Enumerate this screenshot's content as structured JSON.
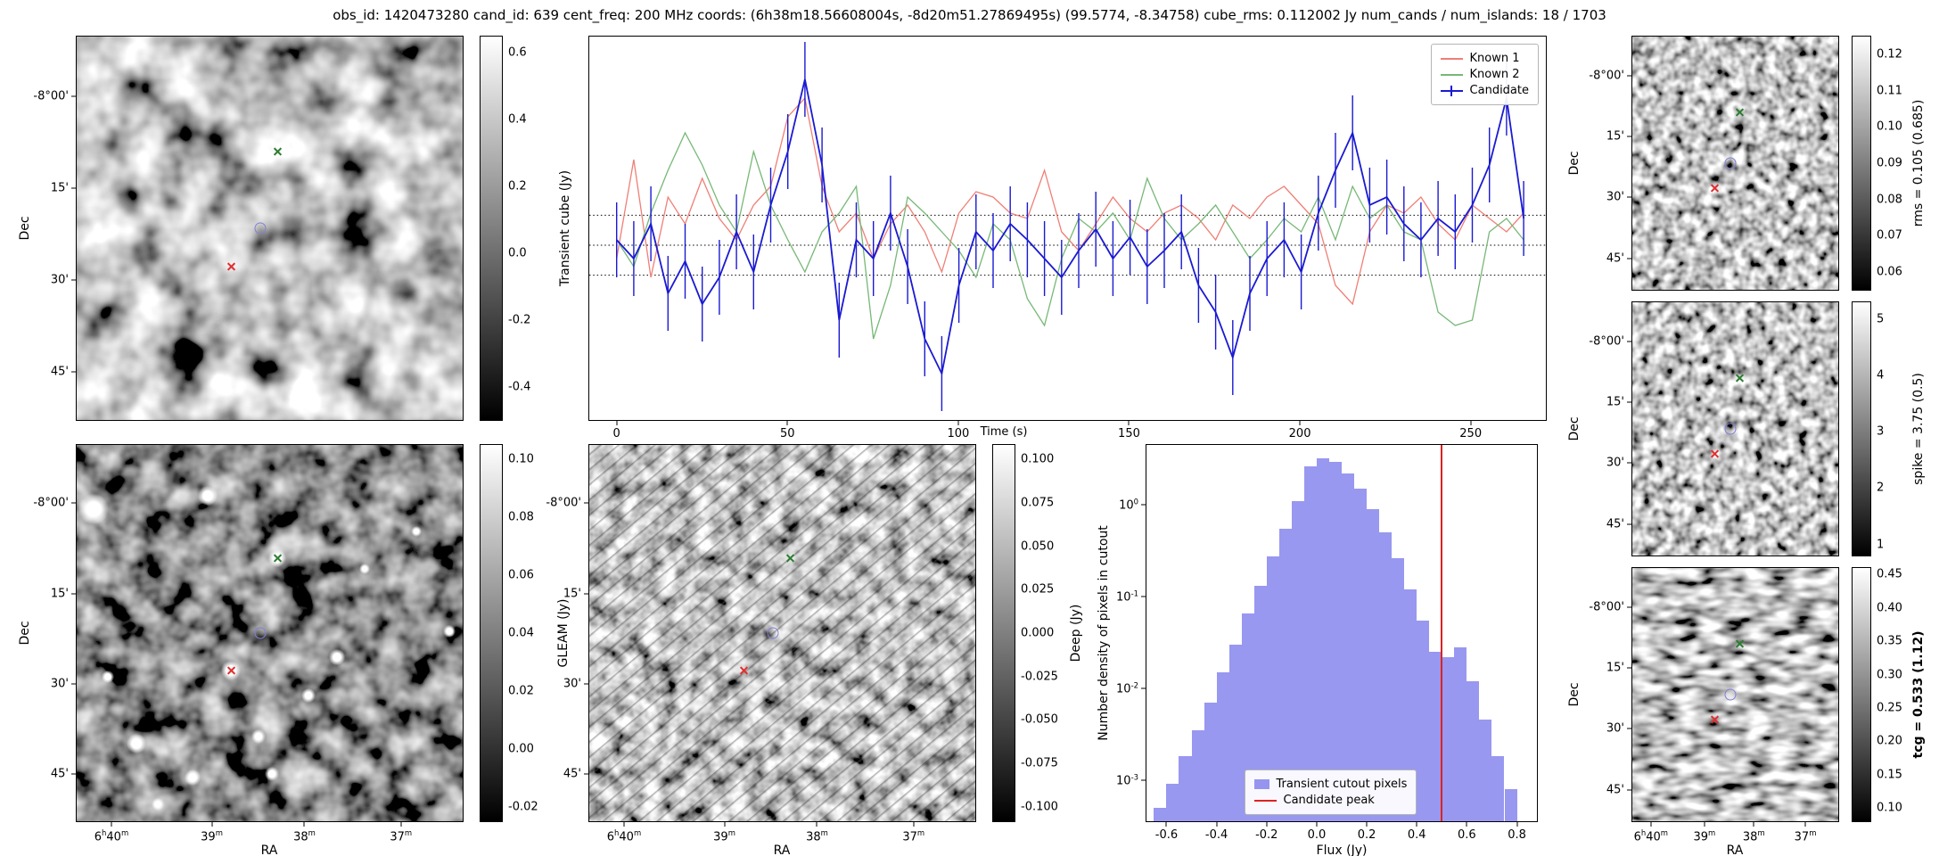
{
  "title": "obs_id: 1420473280 cand_id: 639 cent_freq: 200 MHz coords: (6h38m18.56608004s, -8d20m51.27869495s) (99.5774, -8.34758) cube_rms: 0.112002 Jy num_cands / num_islands: 18 / 1703",
  "axes": {
    "dec_label": "Dec",
    "ra_label": "RA",
    "dec_ticks": [
      {
        "t": "-8°00'",
        "f": 0.155
      },
      {
        "t": "15'",
        "f": 0.395
      },
      {
        "t": "30'",
        "f": 0.635
      },
      {
        "t": "45'",
        "f": 0.875
      }
    ],
    "ra_ticks": [
      {
        "t": "6h40m",
        "f": 0.09
      },
      {
        "t": "39m",
        "f": 0.35
      },
      {
        "t": "38m",
        "f": 0.59
      },
      {
        "t": "37m",
        "f": 0.84
      }
    ]
  },
  "panels": {
    "transient": {
      "colorbar_label": "Transient cube (Jy)",
      "cticks": [
        {
          "t": "0.6",
          "f": 0.043
        },
        {
          "t": "0.4",
          "f": 0.217
        },
        {
          "t": "0.2",
          "f": 0.391
        },
        {
          "t": "0.0",
          "f": 0.565
        },
        {
          "t": "-0.2",
          "f": 0.739
        },
        {
          "t": "-0.4",
          "f": 0.913
        }
      ]
    },
    "gleam": {
      "colorbar_label": "GLEAM (Jy)",
      "cticks": [
        {
          "t": "0.10",
          "f": 0.038
        },
        {
          "t": "0.08",
          "f": 0.192
        },
        {
          "t": "0.06",
          "f": 0.346
        },
        {
          "t": "0.04",
          "f": 0.5
        },
        {
          "t": "0.02",
          "f": 0.654
        },
        {
          "t": "0.00",
          "f": 0.808
        },
        {
          "t": "-0.02",
          "f": 0.962
        }
      ],
      "sources": [
        [
          0.045,
          0.17,
          34
        ],
        [
          0.34,
          0.135,
          22
        ],
        [
          0.52,
          0.3,
          20
        ],
        [
          0.4,
          0.6,
          22
        ],
        [
          0.675,
          0.565,
          18
        ],
        [
          0.6,
          0.665,
          16
        ],
        [
          0.155,
          0.795,
          22
        ],
        [
          0.3,
          0.885,
          18
        ],
        [
          0.47,
          0.775,
          16
        ],
        [
          0.505,
          0.875,
          16
        ],
        [
          0.08,
          0.615,
          14
        ],
        [
          0.88,
          0.23,
          12
        ],
        [
          0.965,
          0.495,
          14
        ],
        [
          0.21,
          0.955,
          14
        ],
        [
          0.745,
          0.33,
          12
        ]
      ]
    },
    "deep": {
      "time_label": "Time (s)",
      "colorbar_label": "Deep (Jy)",
      "cticks": [
        {
          "t": "0.100",
          "f": 0.037
        },
        {
          "t": "0.075",
          "f": 0.153
        },
        {
          "t": "0.050",
          "f": 0.269
        },
        {
          "t": "0.025",
          "f": 0.384
        },
        {
          "t": "0.000",
          "f": 0.5
        },
        {
          "t": "-0.025",
          "f": 0.616
        },
        {
          "t": "-0.050",
          "f": 0.731
        },
        {
          "t": "-0.075",
          "f": 0.847
        },
        {
          "t": "-0.100",
          "f": 0.963
        }
      ]
    },
    "rms": {
      "colorbar_label": "rms = 0.105 (0.685)",
      "cticks": [
        {
          "t": "0.12",
          "f": 0.071
        },
        {
          "t": "0.11",
          "f": 0.214
        },
        {
          "t": "0.10",
          "f": 0.357
        },
        {
          "t": "0.09",
          "f": 0.5
        },
        {
          "t": "0.08",
          "f": 0.643
        },
        {
          "t": "0.07",
          "f": 0.786
        },
        {
          "t": "0.06",
          "f": 0.929
        }
      ]
    },
    "spike": {
      "colorbar_label": "spike = 3.75 (0.5)",
      "cticks": [
        {
          "t": "5",
          "f": 0.067
        },
        {
          "t": "4",
          "f": 0.289
        },
        {
          "t": "3",
          "f": 0.511
        },
        {
          "t": "2",
          "f": 0.733
        },
        {
          "t": "1",
          "f": 0.956
        }
      ]
    },
    "tcg": {
      "colorbar_label": "tcg = 0.533 (1.12)",
      "cticks": [
        {
          "t": "0.45",
          "f": 0.026
        },
        {
          "t": "0.40",
          "f": 0.158
        },
        {
          "t": "0.35",
          "f": 0.289
        },
        {
          "t": "0.30",
          "f": 0.421
        },
        {
          "t": "0.25",
          "f": 0.553
        },
        {
          "t": "0.20",
          "f": 0.684
        },
        {
          "t": "0.15",
          "f": 0.816
        },
        {
          "t": "0.10",
          "f": 0.947
        }
      ]
    }
  },
  "markers": [
    {
      "name": "known2-cross",
      "shape": "x",
      "color": "#2e7d32",
      "rx": 0.52,
      "ry": 0.3
    },
    {
      "name": "candidate-circle",
      "shape": "circle",
      "color": "#8080d8",
      "rx": 0.475,
      "ry": 0.5
    },
    {
      "name": "known1-cross",
      "shape": "x",
      "color": "#e03030",
      "rx": 0.4,
      "ry": 0.6
    }
  ],
  "chart_data": [
    {
      "type": "line",
      "name": "lightcurves",
      "x_start": 0,
      "x_step": 5,
      "xlim": [
        -8,
        272
      ],
      "ylim": [
        -0.66,
        0.78
      ],
      "xticks": [
        0,
        50,
        100,
        150,
        200,
        250
      ],
      "hlines": [
        0.112,
        0,
        -0.112
      ],
      "legend_position": "upper right",
      "series": [
        {
          "name": "Known 1",
          "color": "#ef7f76",
          "values": [
            -0.05,
            0.32,
            -0.12,
            0.18,
            0.08,
            0.25,
            0.1,
            0.02,
            0.15,
            0.22,
            0.48,
            0.55,
            0.22,
            0.05,
            0.12,
            -0.05,
            0.08,
            0.15,
            0.05,
            -0.1,
            0.12,
            0.2,
            0.18,
            0.12,
            0.1,
            0.28,
            0.05,
            -0.02,
            0.08,
            0.18,
            0.1,
            0.05,
            0.12,
            0.15,
            0.1,
            0.02,
            0.15,
            0.1,
            0.18,
            0.22,
            0.15,
            0.08,
            -0.15,
            -0.22,
            0.05,
            0.15,
            0.12,
            0.18,
            0.08,
            0.02,
            0.15,
            0.1,
            0.05,
            0.12
          ]
        },
        {
          "name": "Known 2",
          "color": "#77b877",
          "values": [
            0.02,
            -0.08,
            0.12,
            0.28,
            0.42,
            0.3,
            0.15,
            0.05,
            0.35,
            0.15,
            0.02,
            -0.1,
            0.05,
            0.12,
            0.22,
            -0.35,
            -0.15,
            0.18,
            0.12,
            0.05,
            -0.02,
            -0.12,
            0.08,
            0.02,
            -0.2,
            -0.3,
            -0.05,
            0.1,
            0.05,
            0.12,
            0.02,
            0.25,
            0.1,
            0.02,
            0.08,
            0.15,
            0.05,
            -0.05,
            0.02,
            0.1,
            0.05,
            0.18,
            0.02,
            0.22,
            0.1,
            0.15,
            0.05,
            0.02,
            -0.25,
            -0.3,
            -0.28,
            0.05,
            0.1,
            0.02
          ]
        },
        {
          "name": "Candidate",
          "color": "#1a1ad2",
          "yerr": 0.14,
          "values": [
            0.02,
            -0.05,
            0.08,
            -0.18,
            -0.06,
            -0.22,
            -0.12,
            0.05,
            -0.1,
            0.15,
            0.35,
            0.62,
            0.3,
            -0.28,
            0.02,
            -0.05,
            0.12,
            -0.08,
            -0.35,
            -0.48,
            -0.15,
            0.05,
            -0.02,
            0.08,
            0.02,
            -0.05,
            -0.12,
            -0.02,
            0.06,
            -0.05,
            0.03,
            -0.08,
            -0.02,
            0.05,
            -0.15,
            -0.25,
            -0.42,
            -0.18,
            -0.05,
            0.02,
            -0.1,
            0.12,
            0.28,
            0.42,
            0.15,
            0.18,
            0.08,
            0.02,
            0.1,
            0.05,
            0.15,
            0.3,
            0.55,
            0.1
          ]
        }
      ]
    },
    {
      "type": "bar",
      "name": "flux-histogram",
      "xlabel": "Flux (Jy)",
      "ylabel": "Number density of pixels in cutout",
      "bin_start": -0.65,
      "bin_width": 0.05,
      "values": [
        0.0005,
        0.0009,
        0.0018,
        0.0035,
        0.007,
        0.015,
        0.03,
        0.065,
        0.13,
        0.27,
        0.55,
        1.1,
        2.6,
        3.2,
        2.9,
        2.2,
        1.5,
        0.9,
        0.5,
        0.26,
        0.12,
        0.055,
        0.025,
        0.022,
        0.028,
        0.012,
        0.0045,
        0.0018,
        0.0008
      ],
      "bar_color": "rgba(88,88,230,0.62)",
      "xlim": [
        -0.68,
        0.88
      ],
      "ylog_top": 0.65,
      "ylog_range": 4.1,
      "xticks": [
        -0.6,
        -0.4,
        -0.2,
        0.0,
        0.2,
        0.4,
        0.6,
        0.8
      ],
      "ytick_exponents": [
        0,
        -1,
        -2,
        -3
      ],
      "vline": {
        "x": 0.5,
        "color": "#dd2222"
      },
      "legend": [
        {
          "type": "patch",
          "label": "Transient cutout pixels"
        },
        {
          "type": "line",
          "label": "Candidate peak"
        }
      ]
    }
  ]
}
